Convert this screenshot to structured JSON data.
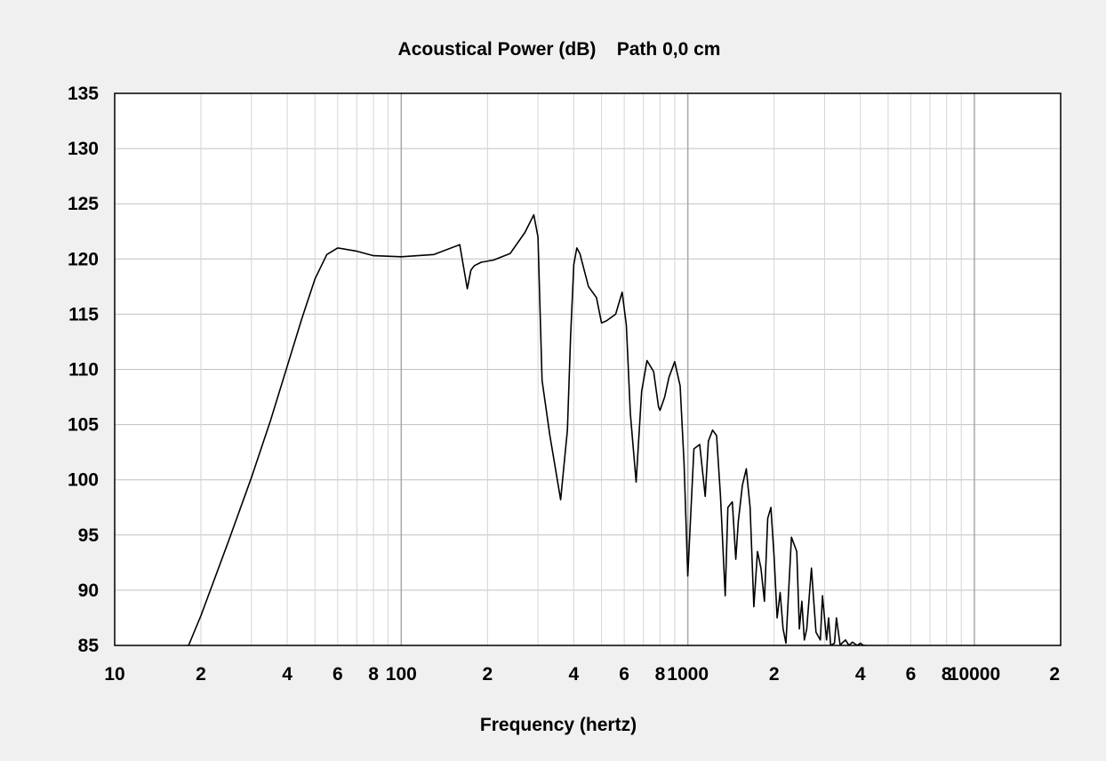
{
  "chart_data": {
    "type": "line",
    "title": "Acoustical Power (dB)    Path 0,0 cm",
    "xlabel": "Frequency (hertz)",
    "ylabel": "",
    "x_scale": "log",
    "xlim": [
      10,
      20000
    ],
    "ylim": [
      85,
      135
    ],
    "grid": true,
    "x_tick_labels": [
      {
        "value": 10,
        "label": "10"
      },
      {
        "value": 20,
        "label": "2"
      },
      {
        "value": 40,
        "label": "4"
      },
      {
        "value": 60,
        "label": "6"
      },
      {
        "value": 80,
        "label": "8"
      },
      {
        "value": 100,
        "label": "100"
      },
      {
        "value": 200,
        "label": "2"
      },
      {
        "value": 400,
        "label": "4"
      },
      {
        "value": 600,
        "label": "6"
      },
      {
        "value": 800,
        "label": "8"
      },
      {
        "value": 1000,
        "label": "1000"
      },
      {
        "value": 2000,
        "label": "2"
      },
      {
        "value": 4000,
        "label": "4"
      },
      {
        "value": 6000,
        "label": "6"
      },
      {
        "value": 8000,
        "label": "8"
      },
      {
        "value": 10000,
        "label": "10000"
      },
      {
        "value": 20000,
        "label": "2"
      }
    ],
    "y_ticks": [
      135,
      130,
      125,
      120,
      115,
      110,
      105,
      100,
      95,
      90,
      85
    ],
    "series": [
      {
        "color": "#000000",
        "x": [
          10,
          18.1,
          20,
          25,
          30,
          35,
          40,
          45,
          50,
          55,
          60,
          70,
          80,
          100,
          130,
          160,
          170,
          175,
          180,
          190,
          210,
          240,
          270,
          290,
          300,
          310,
          330,
          360,
          380,
          390,
          400,
          410,
          420,
          450,
          480,
          500,
          520,
          560,
          590,
          610,
          630,
          660,
          690,
          720,
          760,
          790,
          800,
          830,
          860,
          900,
          940,
          970,
          1000,
          1050,
          1100,
          1150,
          1180,
          1220,
          1260,
          1300,
          1350,
          1380,
          1430,
          1470,
          1500,
          1550,
          1600,
          1650,
          1700,
          1750,
          1800,
          1850,
          1900,
          1950,
          2000,
          2050,
          2100,
          2150,
          2200,
          2300,
          2400,
          2450,
          2500,
          2550,
          2600,
          2700,
          2750,
          2800,
          2900,
          2950,
          3050,
          3100,
          3150,
          3250,
          3300,
          3400,
          3450,
          3550,
          3650,
          3750,
          3900,
          4000,
          4100,
          4200
        ],
        "y": [
          84.5,
          85,
          87.7,
          94.5,
          100.2,
          105.4,
          110.3,
          114.6,
          118.2,
          120.4,
          121,
          120.7,
          120.3,
          120.2,
          120.4,
          121.3,
          117.3,
          119,
          119.4,
          119.7,
          119.9,
          120.5,
          122.4,
          124,
          122,
          109,
          104,
          98.2,
          104.5,
          113,
          119.5,
          121,
          120.5,
          117.5,
          116.5,
          114.2,
          114.4,
          115,
          117,
          114,
          106,
          99.8,
          108,
          110.8,
          109.8,
          106.6,
          106.3,
          107.5,
          109.3,
          110.7,
          108.5,
          101.5,
          91.3,
          102.8,
          103.2,
          98.5,
          103.5,
          104.5,
          104,
          98.5,
          89.5,
          97.5,
          98,
          92.8,
          96.2,
          99.5,
          101,
          97.5,
          88.5,
          93.5,
          92,
          89,
          96.5,
          97.5,
          93,
          87.5,
          89.8,
          86.5,
          85.2,
          94.8,
          93.5,
          86.5,
          89,
          85.5,
          86.5,
          92,
          89,
          86.2,
          85.5,
          89.5,
          85.5,
          87.5,
          85,
          85.2,
          87.5,
          85,
          85.2,
          85.5,
          85,
          85.3,
          85,
          85.2,
          85,
          85
        ]
      }
    ]
  }
}
